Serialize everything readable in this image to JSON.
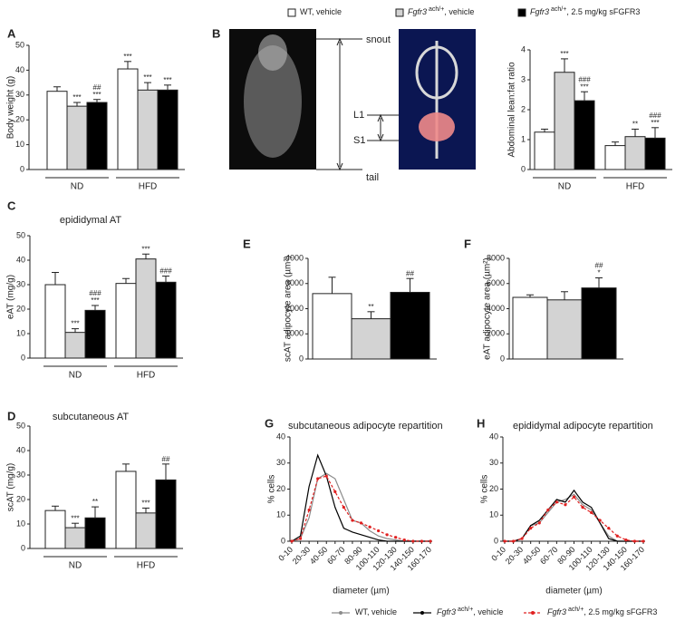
{
  "legend_top": [
    {
      "label": "WT, vehicle",
      "color": "#ffffff"
    },
    {
      "gene": "Fgfr3",
      "sup": "ach/+",
      "label": ", vehicle",
      "color": "#d3d3d3"
    },
    {
      "gene": "Fgfr3",
      "sup": "ach/+",
      "label": ", 2.5 mg/kg sFGFR3",
      "color": "#000000"
    }
  ],
  "legend_bottom": [
    {
      "label": "WT, vehicle",
      "color": "#8c8c8c"
    },
    {
      "gene": "Fgfr3",
      "sup": "ach/+",
      "label": ", vehicle",
      "color": "#000000"
    },
    {
      "gene": "Fgfr3",
      "sup": "ach/+",
      "label": ", 2.5 mg/kg sFGFR3",
      "color": "#e02020"
    }
  ],
  "chart_data": [
    {
      "type": "bar",
      "panel": "A",
      "ylabel": "Body weight (g)",
      "categories": [
        "ND",
        "HFD"
      ],
      "ylim": [
        0,
        50
      ],
      "yticks": [
        0,
        10,
        20,
        30,
        40,
        50
      ],
      "series": [
        {
          "color": "#ffffff",
          "values": [
            31.5,
            40.5
          ],
          "errors": [
            1.8,
            3
          ],
          "sig": [
            null,
            [
              "***"
            ]
          ]
        },
        {
          "color": "#d3d3d3",
          "values": [
            25.5,
            32
          ],
          "errors": [
            1.5,
            3
          ],
          "sig": [
            [
              "***"
            ],
            [
              "***"
            ]
          ]
        },
        {
          "color": "#000000",
          "values": [
            27,
            32
          ],
          "errors": [
            1.2,
            2
          ],
          "sig": [
            [
              "##",
              "***"
            ],
            [
              "***"
            ]
          ]
        }
      ]
    },
    {
      "type": "bar",
      "panel": "B",
      "ylabel": "Abdominal lean:fat ratio",
      "categories": [
        "ND",
        "HFD"
      ],
      "image_labels": [
        "snout",
        "L1",
        "S1",
        "tail"
      ],
      "ylim": [
        0,
        4
      ],
      "yticks": [
        0,
        1,
        2,
        3,
        4
      ],
      "series": [
        {
          "color": "#ffffff",
          "values": [
            1.25,
            0.8
          ],
          "errors": [
            0.1,
            0.12
          ],
          "sig": [
            null,
            null
          ]
        },
        {
          "color": "#d3d3d3",
          "values": [
            3.25,
            1.1
          ],
          "errors": [
            0.45,
            0.25
          ],
          "sig": [
            [
              "***"
            ],
            [
              "**"
            ]
          ]
        },
        {
          "color": "#000000",
          "values": [
            2.3,
            1.05
          ],
          "errors": [
            0.3,
            0.35
          ],
          "sig": [
            [
              "###",
              "***"
            ],
            [
              "###",
              "***"
            ]
          ]
        }
      ]
    },
    {
      "type": "bar",
      "panel": "C",
      "title": "epididymal AT",
      "ylabel": "eAT (mg/g)",
      "categories": [
        "ND",
        "HFD"
      ],
      "ylim": [
        0,
        50
      ],
      "yticks": [
        0,
        10,
        20,
        30,
        40,
        50
      ],
      "series": [
        {
          "color": "#ffffff",
          "values": [
            30,
            30.5
          ],
          "errors": [
            5,
            2
          ],
          "sig": [
            null,
            null
          ]
        },
        {
          "color": "#d3d3d3",
          "values": [
            10.5,
            40.5
          ],
          "errors": [
            1.5,
            2
          ],
          "sig": [
            [
              "***"
            ],
            [
              "***"
            ]
          ]
        },
        {
          "color": "#000000",
          "values": [
            19.5,
            31
          ],
          "errors": [
            2,
            2.5
          ],
          "sig": [
            [
              "###",
              "***"
            ],
            [
              "###"
            ]
          ]
        }
      ]
    },
    {
      "type": "bar",
      "panel": "D",
      "title": "subcutaneous AT",
      "ylabel": "scAT (mg/g)",
      "categories": [
        "ND",
        "HFD"
      ],
      "ylim": [
        0,
        50
      ],
      "yticks": [
        0,
        10,
        20,
        30,
        40,
        50
      ],
      "series": [
        {
          "color": "#ffffff",
          "values": [
            15.5,
            31.5
          ],
          "errors": [
            1.8,
            3
          ],
          "sig": [
            null,
            null
          ]
        },
        {
          "color": "#d3d3d3",
          "values": [
            8.5,
            14.5
          ],
          "errors": [
            1.8,
            2
          ],
          "sig": [
            [
              "***"
            ],
            [
              "***"
            ]
          ]
        },
        {
          "color": "#000000",
          "values": [
            12.5,
            28
          ],
          "errors": [
            4.5,
            6.5
          ],
          "sig": [
            [
              "**"
            ],
            [
              "##"
            ]
          ]
        }
      ]
    },
    {
      "type": "bar",
      "panel": "E",
      "ylabel": "scAT adipocyte area (µm²)",
      "ylim": [
        0,
        4000
      ],
      "yticks": [
        0,
        1000,
        2000,
        3000,
        4000
      ],
      "series": [
        {
          "color": "#ffffff",
          "values": [
            2600
          ],
          "errors": [
            650
          ],
          "sig": [
            null
          ]
        },
        {
          "color": "#d3d3d3",
          "values": [
            1600
          ],
          "errors": [
            280
          ],
          "sig": [
            [
              "**"
            ]
          ]
        },
        {
          "color": "#000000",
          "values": [
            2650
          ],
          "errors": [
            550
          ],
          "sig": [
            [
              "##"
            ]
          ]
        }
      ]
    },
    {
      "type": "bar",
      "panel": "F",
      "ylabel": "eAT adipocyte area (µm²)",
      "ylim": [
        0,
        8000
      ],
      "yticks": [
        0,
        2000,
        4000,
        6000,
        8000
      ],
      "series": [
        {
          "color": "#ffffff",
          "values": [
            4900
          ],
          "errors": [
            200
          ],
          "sig": [
            null
          ]
        },
        {
          "color": "#d3d3d3",
          "values": [
            4700
          ],
          "errors": [
            650
          ],
          "sig": [
            null
          ]
        },
        {
          "color": "#000000",
          "values": [
            5650
          ],
          "errors": [
            800
          ],
          "sig": [
            [
              "##",
              "*"
            ]
          ]
        }
      ]
    },
    {
      "type": "line",
      "panel": "G",
      "title": "subcutaneous adipocyte repartition",
      "ylabel": "% cells",
      "xlabel": "diameter (µm)",
      "categories": [
        "0-10",
        null,
        "20-30",
        null,
        "40-50",
        null,
        "60-70",
        null,
        "80-90",
        null,
        "100-110",
        null,
        "120-130",
        null,
        "140-150",
        null,
        "160-170"
      ],
      "ylim": [
        0,
        40
      ],
      "yticks": [
        0,
        10,
        20,
        30,
        40
      ],
      "series": [
        {
          "color": "#8c8c8c",
          "values": [
            0,
            1,
            9,
            24,
            26,
            24,
            16,
            8,
            7,
            4,
            2,
            1,
            0.5,
            0,
            0,
            0,
            0
          ]
        },
        {
          "color": "#000000",
          "values": [
            0,
            2,
            21,
            33,
            25,
            13,
            5,
            3.5,
            2.5,
            1.5,
            0.5,
            0,
            0,
            0,
            0,
            0,
            0
          ]
        },
        {
          "color": "#e02020",
          "values": [
            0,
            1,
            12,
            24,
            25,
            19,
            13,
            8,
            7,
            5.5,
            4,
            2.5,
            1.5,
            0.5,
            0,
            0,
            0
          ],
          "dashed": true,
          "markers": true
        }
      ]
    },
    {
      "type": "line",
      "panel": "H",
      "title": "epididymal adipocyte repartition",
      "ylabel": "% cells",
      "xlabel": "diameter (µm)",
      "categories": [
        "0-10",
        null,
        "20-30",
        null,
        "40-50",
        null,
        "60-70",
        null,
        "80-90",
        null,
        "100-110",
        null,
        "120-130",
        null,
        "140-150",
        null,
        "160-170"
      ],
      "ylim": [
        0,
        40
      ],
      "yticks": [
        0,
        10,
        20,
        30,
        40
      ],
      "series": [
        {
          "color": "#8c8c8c",
          "values": [
            0,
            0,
            1,
            6,
            7,
            11,
            15,
            16,
            18,
            14,
            12,
            7,
            2,
            0,
            0,
            0,
            0
          ]
        },
        {
          "color": "#000000",
          "values": [
            0,
            0,
            1,
            6,
            8,
            12,
            16,
            15,
            19.5,
            15,
            13,
            7,
            1,
            0,
            0,
            0,
            0
          ]
        },
        {
          "color": "#e02020",
          "values": [
            0,
            0,
            1,
            5,
            7,
            12,
            15,
            14,
            17,
            13,
            11,
            8,
            5,
            2,
            0.5,
            0,
            0
          ],
          "dashed": true,
          "markers": true
        }
      ]
    }
  ]
}
